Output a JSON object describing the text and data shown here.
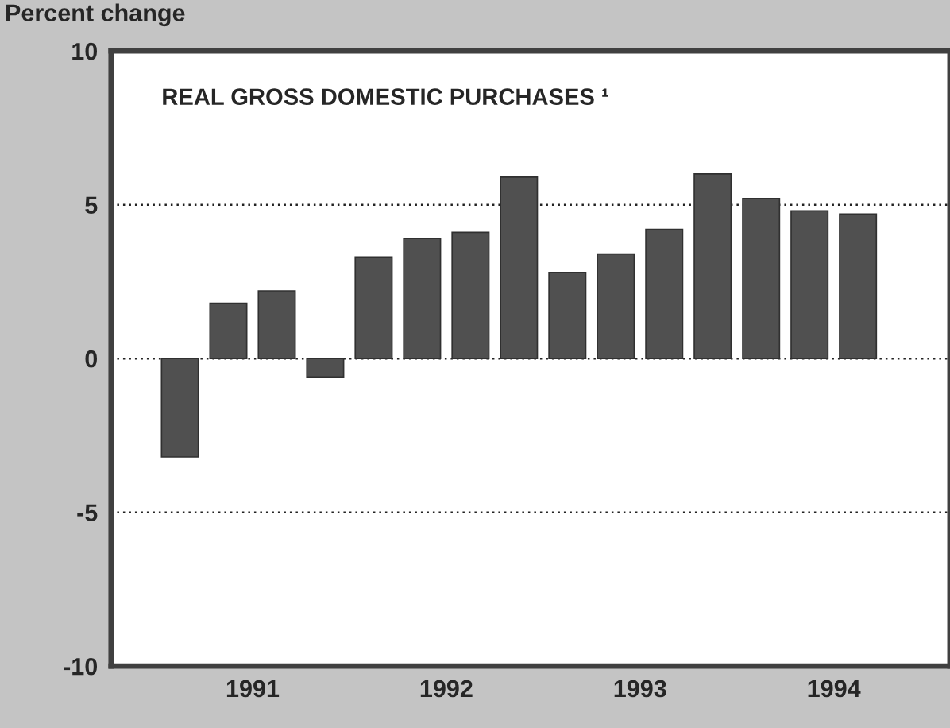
{
  "chart_data": {
    "type": "bar",
    "title": "REAL GROSS DOMESTIC PURCHASES ¹",
    "ylabel": "Percent change",
    "x": [
      1991.125,
      1991.375,
      1991.625,
      1991.875,
      1992.125,
      1992.375,
      1992.625,
      1992.875,
      1993.125,
      1993.375,
      1993.625,
      1993.875,
      1994.125,
      1994.375,
      1994.625
    ],
    "series": [
      {
        "color": "#505050",
        "values": [
          -3.2,
          1.8,
          2.2,
          -0.6,
          3.3,
          3.9,
          4.1,
          5.9,
          2.8,
          3.4,
          4.2,
          6.0,
          5.2,
          4.8,
          4.7
        ]
      }
    ],
    "xlim": [
      1990.77,
      1995.1
    ],
    "xticks": [
      {
        "value": 1991.5,
        "label": "1991"
      },
      {
        "value": 1992.5,
        "label": "1992"
      },
      {
        "value": 1993.5,
        "label": "1993"
      },
      {
        "value": 1994.5,
        "label": "1994"
      }
    ],
    "ylim": [
      -10,
      10
    ],
    "yticks": [
      -10,
      -5,
      0,
      5,
      10
    ],
    "grid": "y"
  }
}
